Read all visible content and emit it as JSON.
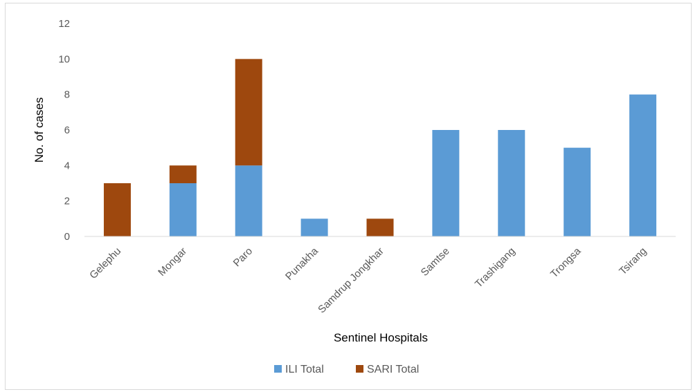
{
  "chart_data": {
    "type": "bar",
    "stacked": true,
    "title": "",
    "xlabel": "Sentinel Hospitals",
    "ylabel": "No. of cases",
    "ylim": [
      0,
      12
    ],
    "yticks": [
      0,
      2,
      4,
      6,
      8,
      10,
      12
    ],
    "grid": false,
    "legend_position": "bottom",
    "categories": [
      "Gelephu",
      "Mongar",
      "Paro",
      "Punakha",
      "Samdrup Jongkhar",
      "Samtse",
      "Trashigang",
      "Trongsa",
      "Tsirang"
    ],
    "series": [
      {
        "name": "ILI Total",
        "color": "#5B9BD5",
        "values": [
          0,
          3,
          4,
          1,
          0,
          6,
          6,
          5,
          8
        ]
      },
      {
        "name": "SARI Total",
        "color": "#9E480E",
        "values": [
          3,
          1,
          6,
          0,
          1,
          0,
          0,
          0,
          0
        ]
      }
    ]
  }
}
